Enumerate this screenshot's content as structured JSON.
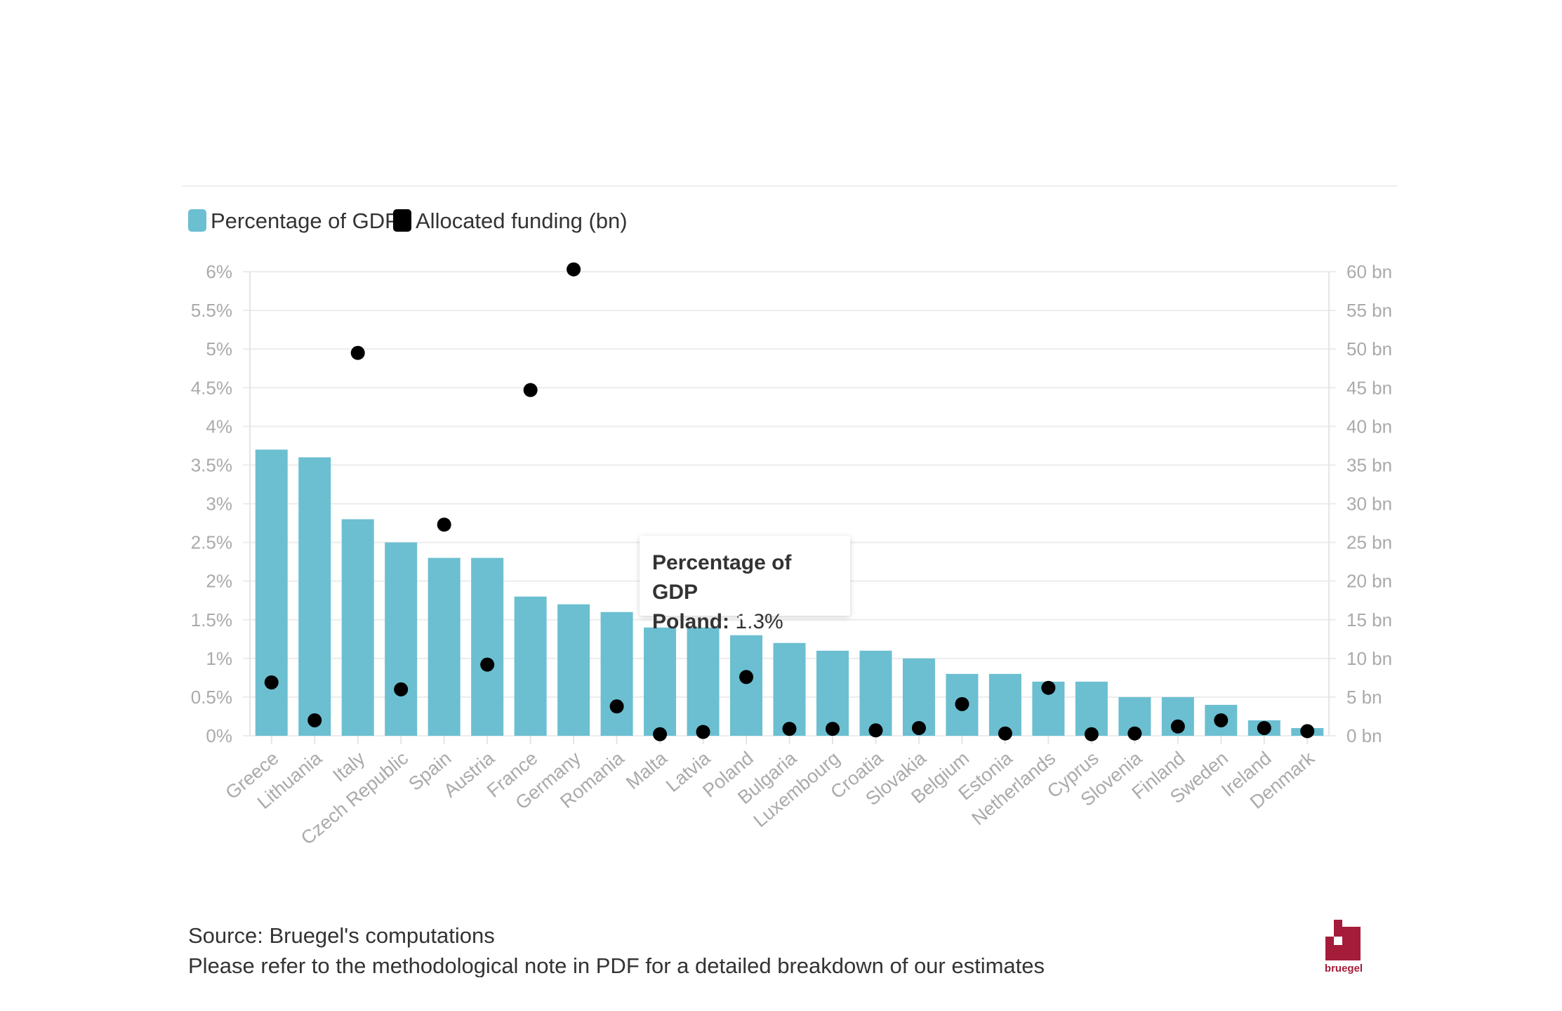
{
  "chart_data": {
    "type": "bar+scatter",
    "categories": [
      "Greece",
      "Lithuania",
      "Italy",
      "Czech Republic",
      "Spain",
      "Austria",
      "France",
      "Germany",
      "Romania",
      "Malta",
      "Latvia",
      "Poland",
      "Bulgaria",
      "Luxembourg",
      "Croatia",
      "Slovakia",
      "Belgium",
      "Estonia",
      "Netherlands",
      "Cyprus",
      "Slovenia",
      "Finland",
      "Sweden",
      "Ireland",
      "Denmark"
    ],
    "series": [
      {
        "name": "Percentage of GDP",
        "type": "bar",
        "axis": "left",
        "color": "#6bbfd1",
        "values": [
          3.7,
          3.6,
          2.8,
          2.5,
          2.3,
          2.3,
          1.8,
          1.7,
          1.6,
          1.4,
          1.4,
          1.3,
          1.2,
          1.1,
          1.1,
          1.0,
          0.8,
          0.8,
          0.7,
          0.7,
          0.5,
          0.5,
          0.4,
          0.2,
          0.1
        ]
      },
      {
        "name": "Allocated funding (bn)",
        "type": "scatter",
        "axis": "right",
        "color": "#000000",
        "values": [
          6.9,
          2.0,
          49.5,
          6.0,
          27.3,
          9.2,
          44.7,
          60.3,
          3.8,
          0.2,
          0.5,
          7.6,
          0.9,
          0.9,
          0.7,
          1.0,
          4.1,
          0.3,
          6.2,
          0.2,
          0.3,
          1.2,
          2.0,
          1.0,
          0.6
        ]
      }
    ],
    "left_axis": {
      "ylim": [
        0,
        6
      ],
      "ticks": [
        "0%",
        "0.5%",
        "1%",
        "1.5%",
        "2%",
        "2.5%",
        "3%",
        "3.5%",
        "4%",
        "4.5%",
        "5%",
        "5.5%",
        "6%"
      ]
    },
    "right_axis": {
      "ylim": [
        0,
        60
      ],
      "ticks": [
        "0 bn",
        "5 bn",
        "10 bn",
        "15 bn",
        "20 bn",
        "25 bn",
        "30 bn",
        "35 bn",
        "40 bn",
        "45 bn",
        "50 bn",
        "55 bn",
        "60 bn"
      ]
    },
    "grid": true,
    "legend_position": "top-left"
  },
  "tooltip": {
    "title": "Percentage of GDP",
    "label": "Poland:",
    "value": "1.3%",
    "category": "Poland"
  },
  "footer": {
    "source": "Source: Bruegel's computations",
    "note": "Please refer to the methodological note in PDF for a detailed breakdown of our estimates"
  },
  "logo": {
    "text": "bruegel",
    "color": "#a51c3a"
  }
}
